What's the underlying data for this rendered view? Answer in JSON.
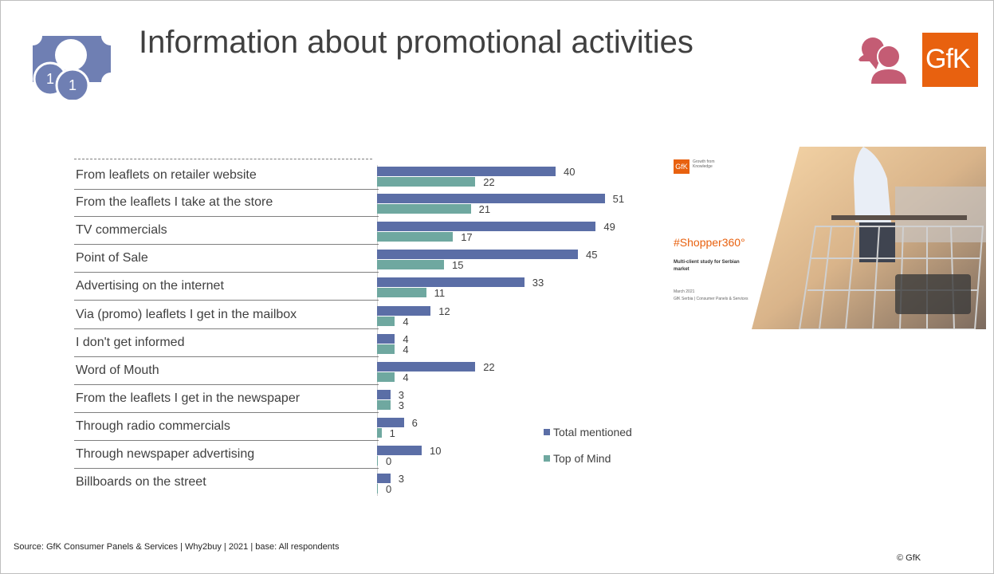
{
  "header": {
    "title": "Information about promotional activities",
    "icons": [
      "money-icon",
      "people-icon",
      "gfk-logo"
    ],
    "gfk_logo_text": "GfK"
  },
  "colors": {
    "total_mentioned": "#5b6ea6",
    "top_of_mind": "#6fa8a0",
    "gfk_orange": "#e8610f",
    "people_icon": "#c45c74",
    "money_icon": "#6f7fb3"
  },
  "chart_data": {
    "type": "bar",
    "orientation": "horizontal",
    "categories": [
      "From leaflets on retailer website",
      "From the leaflets I take at the store",
      "TV commercials",
      "Point of Sale",
      "Advertising on the internet",
      "Via (promo) leaflets I get in the mailbox",
      "I don't get informed",
      "Word of Mouth",
      "From the leaflets I get in the newspaper",
      "Through radio commercials",
      "Through newspaper advertising",
      "Billboards on the street"
    ],
    "series": [
      {
        "name": "Total mentioned",
        "values": [
          40,
          51,
          49,
          45,
          33,
          12,
          4,
          22,
          3,
          6,
          10,
          3
        ]
      },
      {
        "name": "Top of Mind",
        "values": [
          22,
          21,
          17,
          15,
          11,
          4,
          4,
          4,
          3,
          1,
          0,
          0
        ]
      }
    ],
    "legend_position": "right"
  },
  "cover": {
    "logo_text": "GfK",
    "tagline": "Growth from Knowledge",
    "hashtag": "#Shopper360°",
    "subtitle": "Multi-client study for Serbian market",
    "date": "March 2021",
    "org": "GfK Serbia | Consumer Panels & Services"
  },
  "footer": {
    "source": "Source: GfK Consumer Panels & Services | Why2buy | 2021 | base: All respondents",
    "copyright": "© GfK"
  }
}
